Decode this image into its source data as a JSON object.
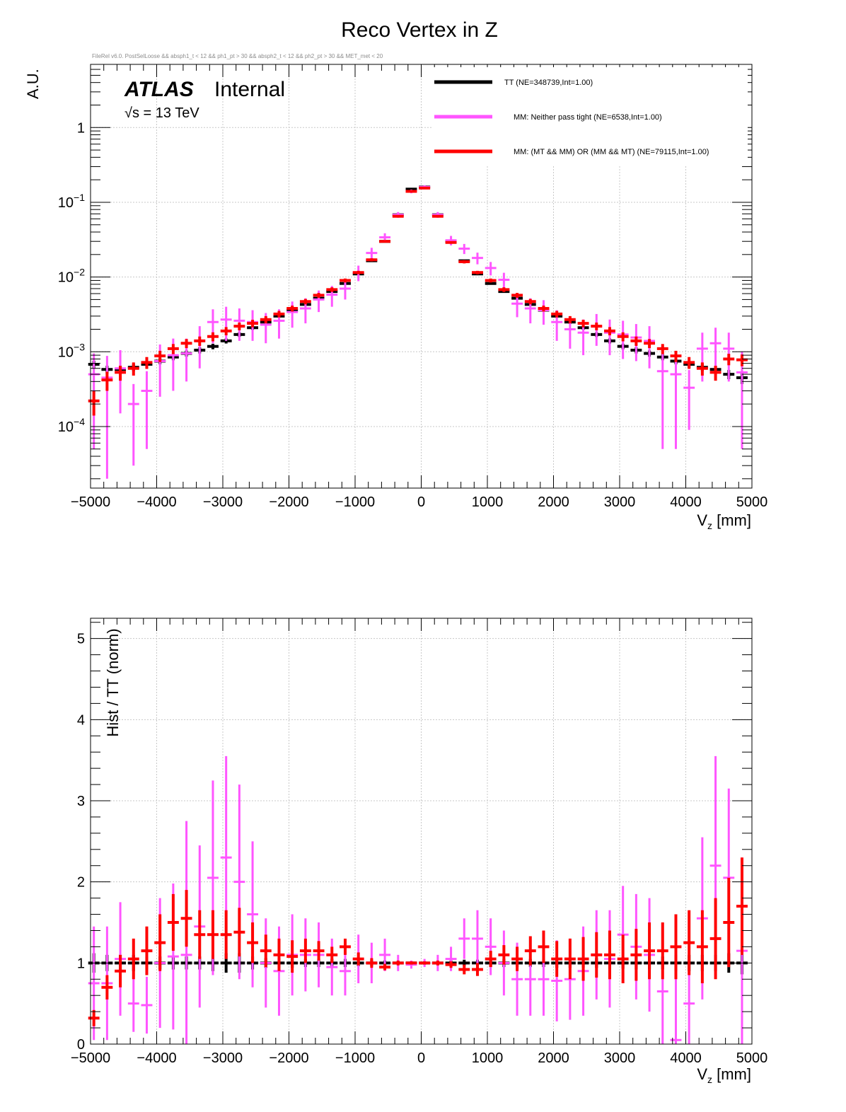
{
  "title": "Reco Vertex in Z",
  "cut_string": "FileRel v6.0. PostSelLoose && absph1_t < 12 && ph1_pt > 30 && absph2_t < 12 && ph2_pt > 30 && MET_met < 20",
  "atlas": {
    "label": "ATLAS",
    "status": "Internal",
    "energy": "√s = 13 TeV"
  },
  "colors": {
    "TT": "#000000",
    "MM_neither": "#ff55ff",
    "MM_mixed": "#ff0000",
    "grid": "#c8c8c8"
  },
  "chart_data": [
    {
      "type": "line",
      "scale": "log",
      "ylabel": "A.U.",
      "xlabel_main": "V",
      "xlabel_sub": "z",
      "xlabel_unit": " [mm]",
      "xlim": [
        -5000,
        5000
      ],
      "ylim": [
        1.5e-05,
        7
      ],
      "grid": true,
      "legend_position": "top-right",
      "x_ticks": [
        "−5000",
        "−4000",
        "−3000",
        "−2000",
        "−1000",
        "0",
        "1000",
        "2000",
        "3000",
        "4000",
        "5000"
      ],
      "y_ticks": [
        {
          "value": 0.0001,
          "mantissa": "10",
          "exponent": "−4"
        },
        {
          "value": 0.001,
          "mantissa": "10",
          "exponent": "−3"
        },
        {
          "value": 0.01,
          "mantissa": "10",
          "exponent": "−2"
        },
        {
          "value": 0.1,
          "mantissa": "10",
          "exponent": "−1"
        },
        {
          "value": 1,
          "mantissa": "1",
          "exponent": ""
        }
      ],
      "x": [
        -4950,
        -4750,
        -4550,
        -4350,
        -4150,
        -3950,
        -3750,
        -3550,
        -3350,
        -3150,
        -2950,
        -2750,
        -2550,
        -2350,
        -2150,
        -1950,
        -1750,
        -1550,
        -1350,
        -1150,
        -950,
        -750,
        -550,
        -350,
        -150,
        50,
        250,
        450,
        650,
        850,
        1050,
        1250,
        1450,
        1650,
        1850,
        2050,
        2250,
        2450,
        2650,
        2850,
        3050,
        3250,
        3450,
        3650,
        3850,
        4050,
        4250,
        4450,
        4650,
        4850
      ],
      "series": [
        {
          "name": "TT (NE=348739,Int=1.00)",
          "color_key": "TT",
          "values": [
            0.00068,
            0.00058,
            0.00058,
            0.00062,
            0.00068,
            0.00075,
            0.00085,
            0.00095,
            0.00105,
            0.00118,
            0.0014,
            0.0017,
            0.0021,
            0.0025,
            0.003,
            0.0036,
            0.0043,
            0.0052,
            0.0064,
            0.0082,
            0.011,
            0.0165,
            0.03,
            0.068,
            0.15,
            0.16,
            0.068,
            0.03,
            0.0165,
            0.011,
            0.0082,
            0.0064,
            0.0052,
            0.0043,
            0.0036,
            0.003,
            0.0025,
            0.0021,
            0.0017,
            0.0014,
            0.00118,
            0.00105,
            0.00095,
            0.00085,
            0.00075,
            0.00068,
            0.00062,
            0.00058,
            0.0005,
            0.00045
          ],
          "errors": [
            8e-05,
            7e-05,
            7e-05,
            7e-05,
            7e-05,
            7e-05,
            8e-05,
            9e-05,
            0.0001,
            0.0001,
            0.00011,
            0.00012,
            0.00013,
            0.00014,
            0.00015,
            0.00016,
            0.00017,
            0.0002,
            0.00022,
            0.00026,
            0.0003,
            0.0004,
            0.0006,
            0.0009,
            0.0014,
            0.0015,
            0.0009,
            0.0006,
            0.0004,
            0.0003,
            0.00026,
            0.00022,
            0.0002,
            0.00017,
            0.00016,
            0.00015,
            0.00014,
            0.00013,
            0.00012,
            0.00011,
            0.0001,
            0.0001,
            9e-05,
            8e-05,
            7e-05,
            7e-05,
            7e-05,
            7e-05,
            7e-05,
            8e-05
          ]
        },
        {
          "name": "MM: Neither pass tight (NE=6538,Int=1.00)",
          "color_key": "MM_neither",
          "values": [
            0.0005,
            0.00045,
            0.0006,
            0.0002,
            0.0003,
            0.00075,
            0.0009,
            0.00095,
            0.0014,
            0.0025,
            0.0027,
            0.0026,
            0.0025,
            0.0023,
            0.0026,
            0.0034,
            0.0038,
            0.005,
            0.0058,
            0.007,
            0.0115,
            0.021,
            0.034,
            0.068,
            0.14,
            0.16,
            0.068,
            0.031,
            0.024,
            0.018,
            0.0132,
            0.0092,
            0.0044,
            0.0038,
            0.0036,
            0.0025,
            0.002,
            0.0018,
            0.0022,
            0.0018,
            0.0017,
            0.00155,
            0.0014,
            0.00055,
            0.0005,
            0.00033,
            0.0011,
            0.0013,
            0.0011,
            0.00053
          ],
          "errors": [
            0.00045,
            0.00043,
            0.00045,
            0.00017,
            0.00025,
            0.0005,
            0.0006,
            0.00055,
            0.0008,
            0.0012,
            0.0013,
            0.0012,
            0.0011,
            0.001,
            0.0011,
            0.0013,
            0.0014,
            0.0016,
            0.0018,
            0.002,
            0.0027,
            0.0036,
            0.0045,
            0.006,
            0.008,
            0.009,
            0.006,
            0.0045,
            0.0037,
            0.0032,
            0.0027,
            0.0022,
            0.0015,
            0.0014,
            0.0013,
            0.0011,
            0.0009,
            0.0009,
            0.001,
            0.0009,
            0.0009,
            0.0008,
            0.0008,
            0.0005,
            0.00045,
            0.00024,
            0.0007,
            0.0008,
            0.0007,
            0.00048
          ]
        },
        {
          "name": "MM: (MT && MM) OR (MM && MT) (NE=79115,Int=1.00)",
          "color_key": "MM_mixed",
          "values": [
            0.00022,
            0.00042,
            0.00053,
            0.0006,
            0.00072,
            0.00088,
            0.0011,
            0.0013,
            0.0014,
            0.0016,
            0.0019,
            0.0022,
            0.0024,
            0.0027,
            0.0032,
            0.0038,
            0.0047,
            0.0057,
            0.0068,
            0.009,
            0.0115,
            0.017,
            0.03,
            0.065,
            0.14,
            0.155,
            0.065,
            0.029,
            0.016,
            0.0115,
            0.009,
            0.0068,
            0.0057,
            0.0047,
            0.0038,
            0.0032,
            0.0027,
            0.0024,
            0.0022,
            0.0019,
            0.0016,
            0.0014,
            0.0013,
            0.0011,
            0.00088,
            0.00072,
            0.0006,
            0.00053,
            0.0008,
            0.00078
          ],
          "errors": [
            8e-05,
            0.00012,
            0.00012,
            0.00012,
            0.00013,
            0.00015,
            0.00017,
            0.00018,
            0.0002,
            0.00022,
            0.00024,
            0.00026,
            0.00028,
            0.0003,
            0.00032,
            0.00035,
            0.00039,
            0.00043,
            0.00048,
            0.00055,
            0.0006,
            0.0008,
            0.0011,
            0.0016,
            0.0024,
            0.0025,
            0.0016,
            0.0011,
            0.0008,
            0.0006,
            0.00055,
            0.00048,
            0.00043,
            0.00039,
            0.00035,
            0.00032,
            0.0003,
            0.00028,
            0.00026,
            0.00024,
            0.00022,
            0.0002,
            0.00018,
            0.00017,
            0.00015,
            0.00013,
            0.00012,
            0.00012,
            0.00014,
            0.00014
          ]
        }
      ]
    },
    {
      "type": "line",
      "scale": "linear",
      "ylabel": "Hist / TT (norm)",
      "xlabel_main": "V",
      "xlabel_sub": "z",
      "xlabel_unit": " [mm]",
      "xlim": [
        -5000,
        5000
      ],
      "ylim": [
        0,
        5.25
      ],
      "grid": true,
      "x_ticks": [
        "−5000",
        "−4000",
        "−3000",
        "−2000",
        "−1000",
        "0",
        "1000",
        "2000",
        "3000",
        "4000",
        "5000"
      ],
      "y_ticks": [
        "0",
        "1",
        "2",
        "3",
        "4",
        "5"
      ],
      "x": [
        -4950,
        -4750,
        -4550,
        -4350,
        -4150,
        -3950,
        -3750,
        -3550,
        -3350,
        -3150,
        -2950,
        -2750,
        -2550,
        -2350,
        -2150,
        -1950,
        -1750,
        -1550,
        -1350,
        -1150,
        -950,
        -750,
        -550,
        -350,
        -150,
        50,
        250,
        450,
        650,
        850,
        1050,
        1250,
        1450,
        1650,
        1850,
        2050,
        2250,
        2450,
        2650,
        2850,
        3050,
        3250,
        3450,
        3650,
        3850,
        4050,
        4250,
        4450,
        4650,
        4850
      ],
      "series": [
        {
          "name": "TT (NE=348739,Int=1.00)",
          "color_key": "TT",
          "values": [
            1,
            1,
            1,
            1,
            1,
            1,
            1,
            1,
            1,
            1,
            1,
            1,
            1,
            1,
            1,
            1,
            1,
            1,
            1,
            1,
            1,
            1,
            1,
            1,
            1,
            1,
            1,
            1,
            1,
            1,
            1,
            1,
            1,
            1,
            1,
            1,
            1,
            1,
            1,
            1,
            1,
            1,
            1,
            1,
            1,
            1,
            1,
            1,
            1,
            1
          ],
          "errors": [
            0.12,
            0.1,
            0.1,
            0.1,
            0.08,
            0.08,
            0.08,
            0.08,
            0.08,
            0.1,
            0.12,
            0.12,
            0.08,
            0.06,
            0.06,
            0.06,
            0.05,
            0.05,
            0.05,
            0.05,
            0.04,
            0.04,
            0.03,
            0.02,
            0.02,
            0.02,
            0.02,
            0.03,
            0.04,
            0.04,
            0.05,
            0.05,
            0.05,
            0.05,
            0.05,
            0.06,
            0.06,
            0.06,
            0.06,
            0.07,
            0.07,
            0.08,
            0.08,
            0.08,
            0.1,
            0.1,
            0.1,
            0.1,
            0.12,
            0.14
          ]
        },
        {
          "name": "MM: Neither pass tight (NE=6538,Int=1.00)",
          "color_key": "MM_neither",
          "values": [
            0.75,
            0.75,
            1.05,
            0.5,
            0.48,
            1.0,
            1.08,
            1.1,
            1.45,
            2.05,
            2.3,
            2.0,
            1.6,
            1.0,
            0.9,
            1.1,
            1.1,
            1.1,
            0.95,
            0.9,
            1.05,
            1.0,
            1.1,
            1.0,
            0.98,
            1.0,
            1.0,
            1.05,
            1.3,
            1.3,
            1.2,
            1.0,
            0.8,
            0.8,
            0.8,
            0.78,
            0.8,
            0.9,
            1.1,
            1.05,
            1.35,
            1.2,
            1.1,
            0.65,
            0.05,
            0.5,
            1.55,
            2.2,
            2.05,
            1.15
          ],
          "errors": [
            0.7,
            0.7,
            0.7,
            0.35,
            0.35,
            0.8,
            0.9,
            1.65,
            1.0,
            1.2,
            1.25,
            1.2,
            0.9,
            0.55,
            0.55,
            0.5,
            0.45,
            0.4,
            0.35,
            0.3,
            0.3,
            0.25,
            0.2,
            0.1,
            0.05,
            0.05,
            0.1,
            0.15,
            0.25,
            0.35,
            0.35,
            0.4,
            0.45,
            0.45,
            0.45,
            0.5,
            0.5,
            0.55,
            0.55,
            0.6,
            0.6,
            0.65,
            0.7,
            0.8,
            0.9,
            0.7,
            1.0,
            1.35,
            1.1,
            1.15
          ]
        },
        {
          "name": "MM: (MT && MM) OR (MM && MT) (NE=79115,Int=1.00)",
          "color_key": "MM_mixed",
          "values": [
            0.32,
            0.7,
            0.9,
            1.05,
            1.15,
            1.25,
            1.5,
            1.55,
            1.35,
            1.35,
            1.35,
            1.38,
            1.25,
            1.15,
            1.1,
            1.08,
            1.15,
            1.15,
            1.1,
            1.2,
            1.05,
            1.0,
            0.95,
            1.0,
            1.0,
            1.0,
            1.0,
            0.98,
            0.92,
            0.92,
            1.05,
            1.1,
            1.05,
            1.15,
            1.2,
            1.05,
            1.05,
            1.05,
            1.1,
            1.1,
            1.05,
            1.1,
            1.15,
            1.15,
            1.2,
            1.25,
            1.2,
            1.3,
            1.5,
            1.7
          ],
          "errors": [
            0.1,
            0.15,
            0.2,
            0.25,
            0.3,
            0.35,
            0.35,
            0.35,
            0.3,
            0.3,
            0.3,
            0.3,
            0.25,
            0.2,
            0.2,
            0.2,
            0.15,
            0.12,
            0.1,
            0.1,
            0.08,
            0.06,
            0.04,
            0.03,
            0.02,
            0.02,
            0.03,
            0.04,
            0.06,
            0.08,
            0.1,
            0.12,
            0.15,
            0.18,
            0.2,
            0.22,
            0.25,
            0.27,
            0.28,
            0.3,
            0.3,
            0.32,
            0.35,
            0.35,
            0.4,
            0.4,
            0.45,
            0.5,
            0.55,
            0.6
          ]
        }
      ]
    }
  ]
}
